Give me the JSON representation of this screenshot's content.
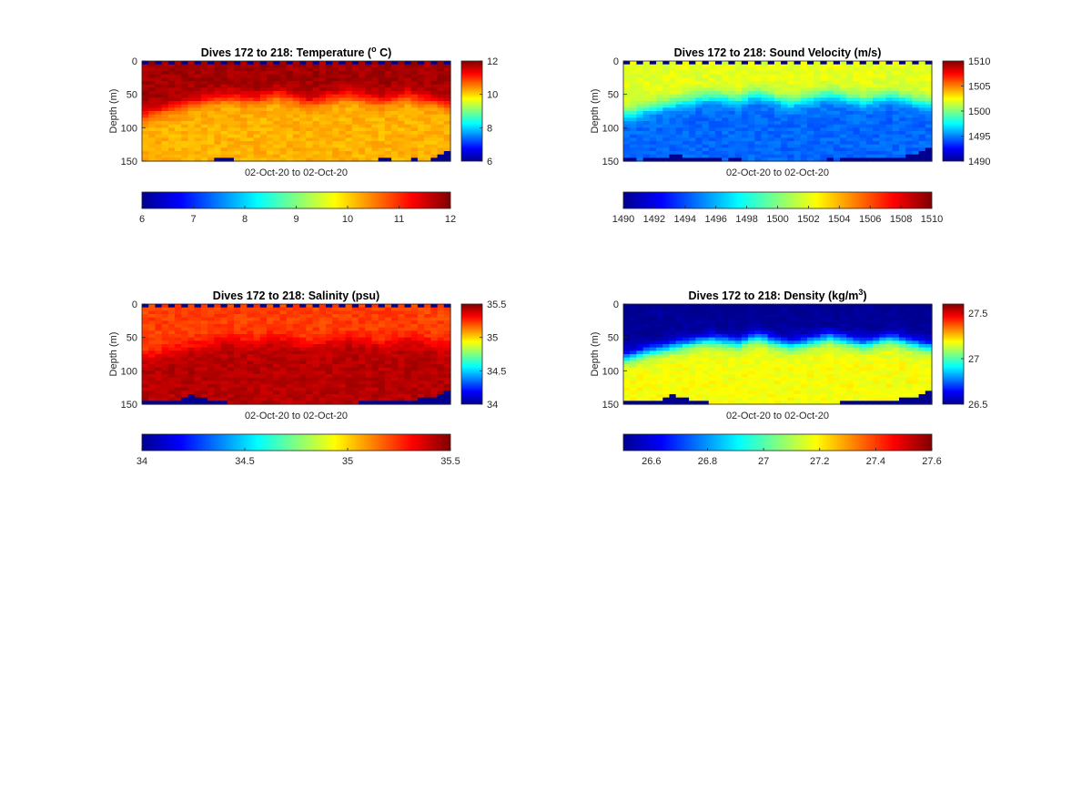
{
  "figure": {
    "colormap": "jet",
    "colormap_stops": [
      "#00008f",
      "#0000ff",
      "#0080ff",
      "#00ffff",
      "#80ff80",
      "#ffff00",
      "#ff8000",
      "#ff0000",
      "#800000"
    ],
    "nan_color": "#00008f"
  },
  "chart_data": [
    {
      "type": "heatmap",
      "title": "Dives 172 to 218: Temperature (",
      "title_sup": "o",
      "title_tail": " C)",
      "xlabel": "02-Oct-20 to 02-Oct-20",
      "ylabel": "Depth (m)",
      "ylim": [
        0,
        150
      ],
      "y_ticks": [
        "0",
        "50",
        "100",
        "150"
      ],
      "y_tick_values": [
        0,
        50,
        100,
        150
      ],
      "x_range": [
        172,
        218
      ],
      "clim": [
        6,
        12
      ],
      "cbar_right_ticks": [
        "6",
        "8",
        "10",
        "12"
      ],
      "cbar_right_values": [
        6,
        8,
        10,
        12
      ],
      "cbar_bottom_ticks": [
        "6",
        "7",
        "8",
        "9",
        "10",
        "11",
        "12"
      ],
      "cbar_bottom_values": [
        6,
        7,
        8,
        9,
        10,
        11,
        12
      ],
      "profile": {
        "top_value": 6,
        "surface_value": 11.8,
        "deep_value": 10.2,
        "thermocline_depth": [
          80,
          78,
          75,
          72,
          70,
          68,
          66,
          64,
          62,
          60,
          58,
          56,
          55,
          54,
          55,
          56,
          57,
          58,
          55,
          52,
          50,
          52,
          55,
          58,
          60,
          62,
          60,
          58,
          56,
          54,
          52,
          50,
          52,
          54,
          56,
          58,
          60,
          58,
          56,
          54,
          52,
          54,
          56,
          58,
          60,
          62,
          64
        ],
        "bottom_gap": [
          0,
          0,
          0,
          0,
          0,
          0,
          0,
          0,
          0,
          0,
          0,
          6,
          6,
          6,
          0,
          0,
          0,
          0,
          0,
          0,
          0,
          0,
          0,
          0,
          0,
          0,
          0,
          0,
          0,
          0,
          0,
          0,
          0,
          0,
          0,
          0,
          3,
          3,
          0,
          0,
          0,
          3,
          0,
          0,
          6,
          10,
          14
        ]
      }
    },
    {
      "type": "heatmap",
      "title": "Dives 172 to 218: Sound Velocity (m/s)",
      "xlabel": "02-Oct-20 to 02-Oct-20",
      "ylabel": "Depth (m)",
      "ylim": [
        0,
        150
      ],
      "y_ticks": [
        "0",
        "50",
        "100",
        "150"
      ],
      "y_tick_values": [
        0,
        50,
        100,
        150
      ],
      "x_range": [
        172,
        218
      ],
      "clim": [
        1490,
        1510
      ],
      "cbar_right_ticks": [
        "1490",
        "1495",
        "1500",
        "1505",
        "1510"
      ],
      "cbar_right_values": [
        1490,
        1495,
        1500,
        1505,
        1510
      ],
      "cbar_bottom_ticks": [
        "1490",
        "1492",
        "1494",
        "1496",
        "1498",
        "1500",
        "1502",
        "1504",
        "1506",
        "1508",
        "1510"
      ],
      "cbar_bottom_values": [
        1490,
        1492,
        1494,
        1496,
        1498,
        1500,
        1502,
        1504,
        1506,
        1508,
        1510
      ],
      "profile": {
        "top_value": 1490,
        "surface_value": 1502,
        "deep_value": 1494.5,
        "thermocline_depth": [
          80,
          78,
          75,
          72,
          70,
          68,
          66,
          64,
          62,
          60,
          58,
          56,
          55,
          54,
          55,
          56,
          57,
          58,
          55,
          52,
          50,
          52,
          55,
          58,
          60,
          62,
          60,
          58,
          56,
          54,
          52,
          50,
          52,
          54,
          56,
          58,
          60,
          58,
          56,
          54,
          52,
          54,
          56,
          58,
          60,
          62,
          64
        ],
        "bottom_gap": [
          4,
          4,
          0,
          4,
          4,
          4,
          6,
          8,
          8,
          6,
          6,
          6,
          4,
          4,
          4,
          0,
          4,
          4,
          0,
          0,
          0,
          0,
          0,
          0,
          0,
          0,
          0,
          0,
          0,
          0,
          0,
          4,
          0,
          4,
          4,
          4,
          4,
          4,
          4,
          4,
          4,
          4,
          6,
          8,
          10,
          14,
          18
        ]
      }
    },
    {
      "type": "heatmap",
      "title": "Dives 172 to 218: Salinity (psu)",
      "xlabel": "02-Oct-20 to 02-Oct-20",
      "ylabel": "Depth (m)",
      "ylim": [
        0,
        150
      ],
      "y_ticks": [
        "0",
        "50",
        "100",
        "150"
      ],
      "y_tick_values": [
        0,
        50,
        100,
        150
      ],
      "x_range": [
        172,
        218
      ],
      "clim": [
        34,
        35.5
      ],
      "cbar_right_ticks": [
        "34",
        "34.5",
        "35",
        "35.5"
      ],
      "cbar_right_values": [
        34,
        34.5,
        35,
        35.5
      ],
      "cbar_bottom_ticks": [
        "34",
        "34.5",
        "35",
        "35.5"
      ],
      "cbar_bottom_values": [
        34,
        34.5,
        35,
        35.5
      ],
      "profile": {
        "top_value": 34,
        "surface_value": 35.22,
        "deep_value": 35.42,
        "thermocline_depth": [
          80,
          78,
          75,
          72,
          70,
          68,
          66,
          64,
          62,
          60,
          58,
          56,
          55,
          54,
          55,
          56,
          57,
          58,
          55,
          52,
          50,
          52,
          55,
          58,
          60,
          62,
          60,
          58,
          56,
          54,
          52,
          50,
          52,
          54,
          56,
          58,
          60,
          58,
          56,
          54,
          52,
          54,
          56,
          58,
          60,
          62,
          64
        ],
        "bottom_gap": [
          6,
          6,
          4,
          6,
          4,
          4,
          10,
          14,
          12,
          8,
          6,
          4,
          4,
          0,
          0,
          0,
          0,
          0,
          0,
          0,
          0,
          0,
          0,
          0,
          0,
          0,
          0,
          0,
          0,
          0,
          0,
          0,
          2,
          4,
          4,
          6,
          6,
          6,
          6,
          6,
          6,
          6,
          8,
          10,
          12,
          16,
          20
        ]
      }
    },
    {
      "type": "heatmap",
      "title": "Dives 172 to 218: Density (kg/m",
      "title_sup": "3",
      "title_tail": ")",
      "xlabel": "02-Oct-20 to 02-Oct-20",
      "ylabel": "Depth (m)",
      "ylim": [
        0,
        150
      ],
      "y_ticks": [
        "0",
        "50",
        "100",
        "150"
      ],
      "y_tick_values": [
        0,
        50,
        100,
        150
      ],
      "x_range": [
        172,
        218
      ],
      "clim": [
        26.5,
        27.6
      ],
      "cbar_right_ticks": [
        "26.5",
        "27",
        "27.5"
      ],
      "cbar_right_values": [
        26.5,
        27,
        27.5
      ],
      "cbar_bottom_ticks": [
        "26.6",
        "26.8",
        "27",
        "27.2",
        "27.4",
        "27.6"
      ],
      "cbar_bottom_values": [
        26.6,
        26.8,
        27,
        27.2,
        27.4,
        27.6
      ],
      "profile": {
        "top_value": 26.5,
        "surface_value": 26.5,
        "deep_value": 27.18,
        "thermocline_depth": [
          80,
          78,
          75,
          72,
          70,
          68,
          66,
          64,
          62,
          60,
          58,
          56,
          55,
          54,
          55,
          56,
          57,
          58,
          55,
          52,
          50,
          52,
          55,
          58,
          60,
          62,
          60,
          58,
          56,
          54,
          52,
          50,
          52,
          54,
          56,
          58,
          60,
          58,
          56,
          54,
          52,
          54,
          56,
          58,
          60,
          62,
          64
        ],
        "bottom_gap": [
          6,
          6,
          4,
          6,
          4,
          4,
          10,
          14,
          12,
          8,
          6,
          4,
          4,
          0,
          0,
          0,
          0,
          0,
          0,
          0,
          0,
          0,
          0,
          0,
          0,
          0,
          0,
          0,
          0,
          0,
          0,
          0,
          2,
          4,
          4,
          6,
          6,
          6,
          6,
          6,
          6,
          6,
          8,
          10,
          12,
          16,
          20
        ]
      }
    }
  ]
}
